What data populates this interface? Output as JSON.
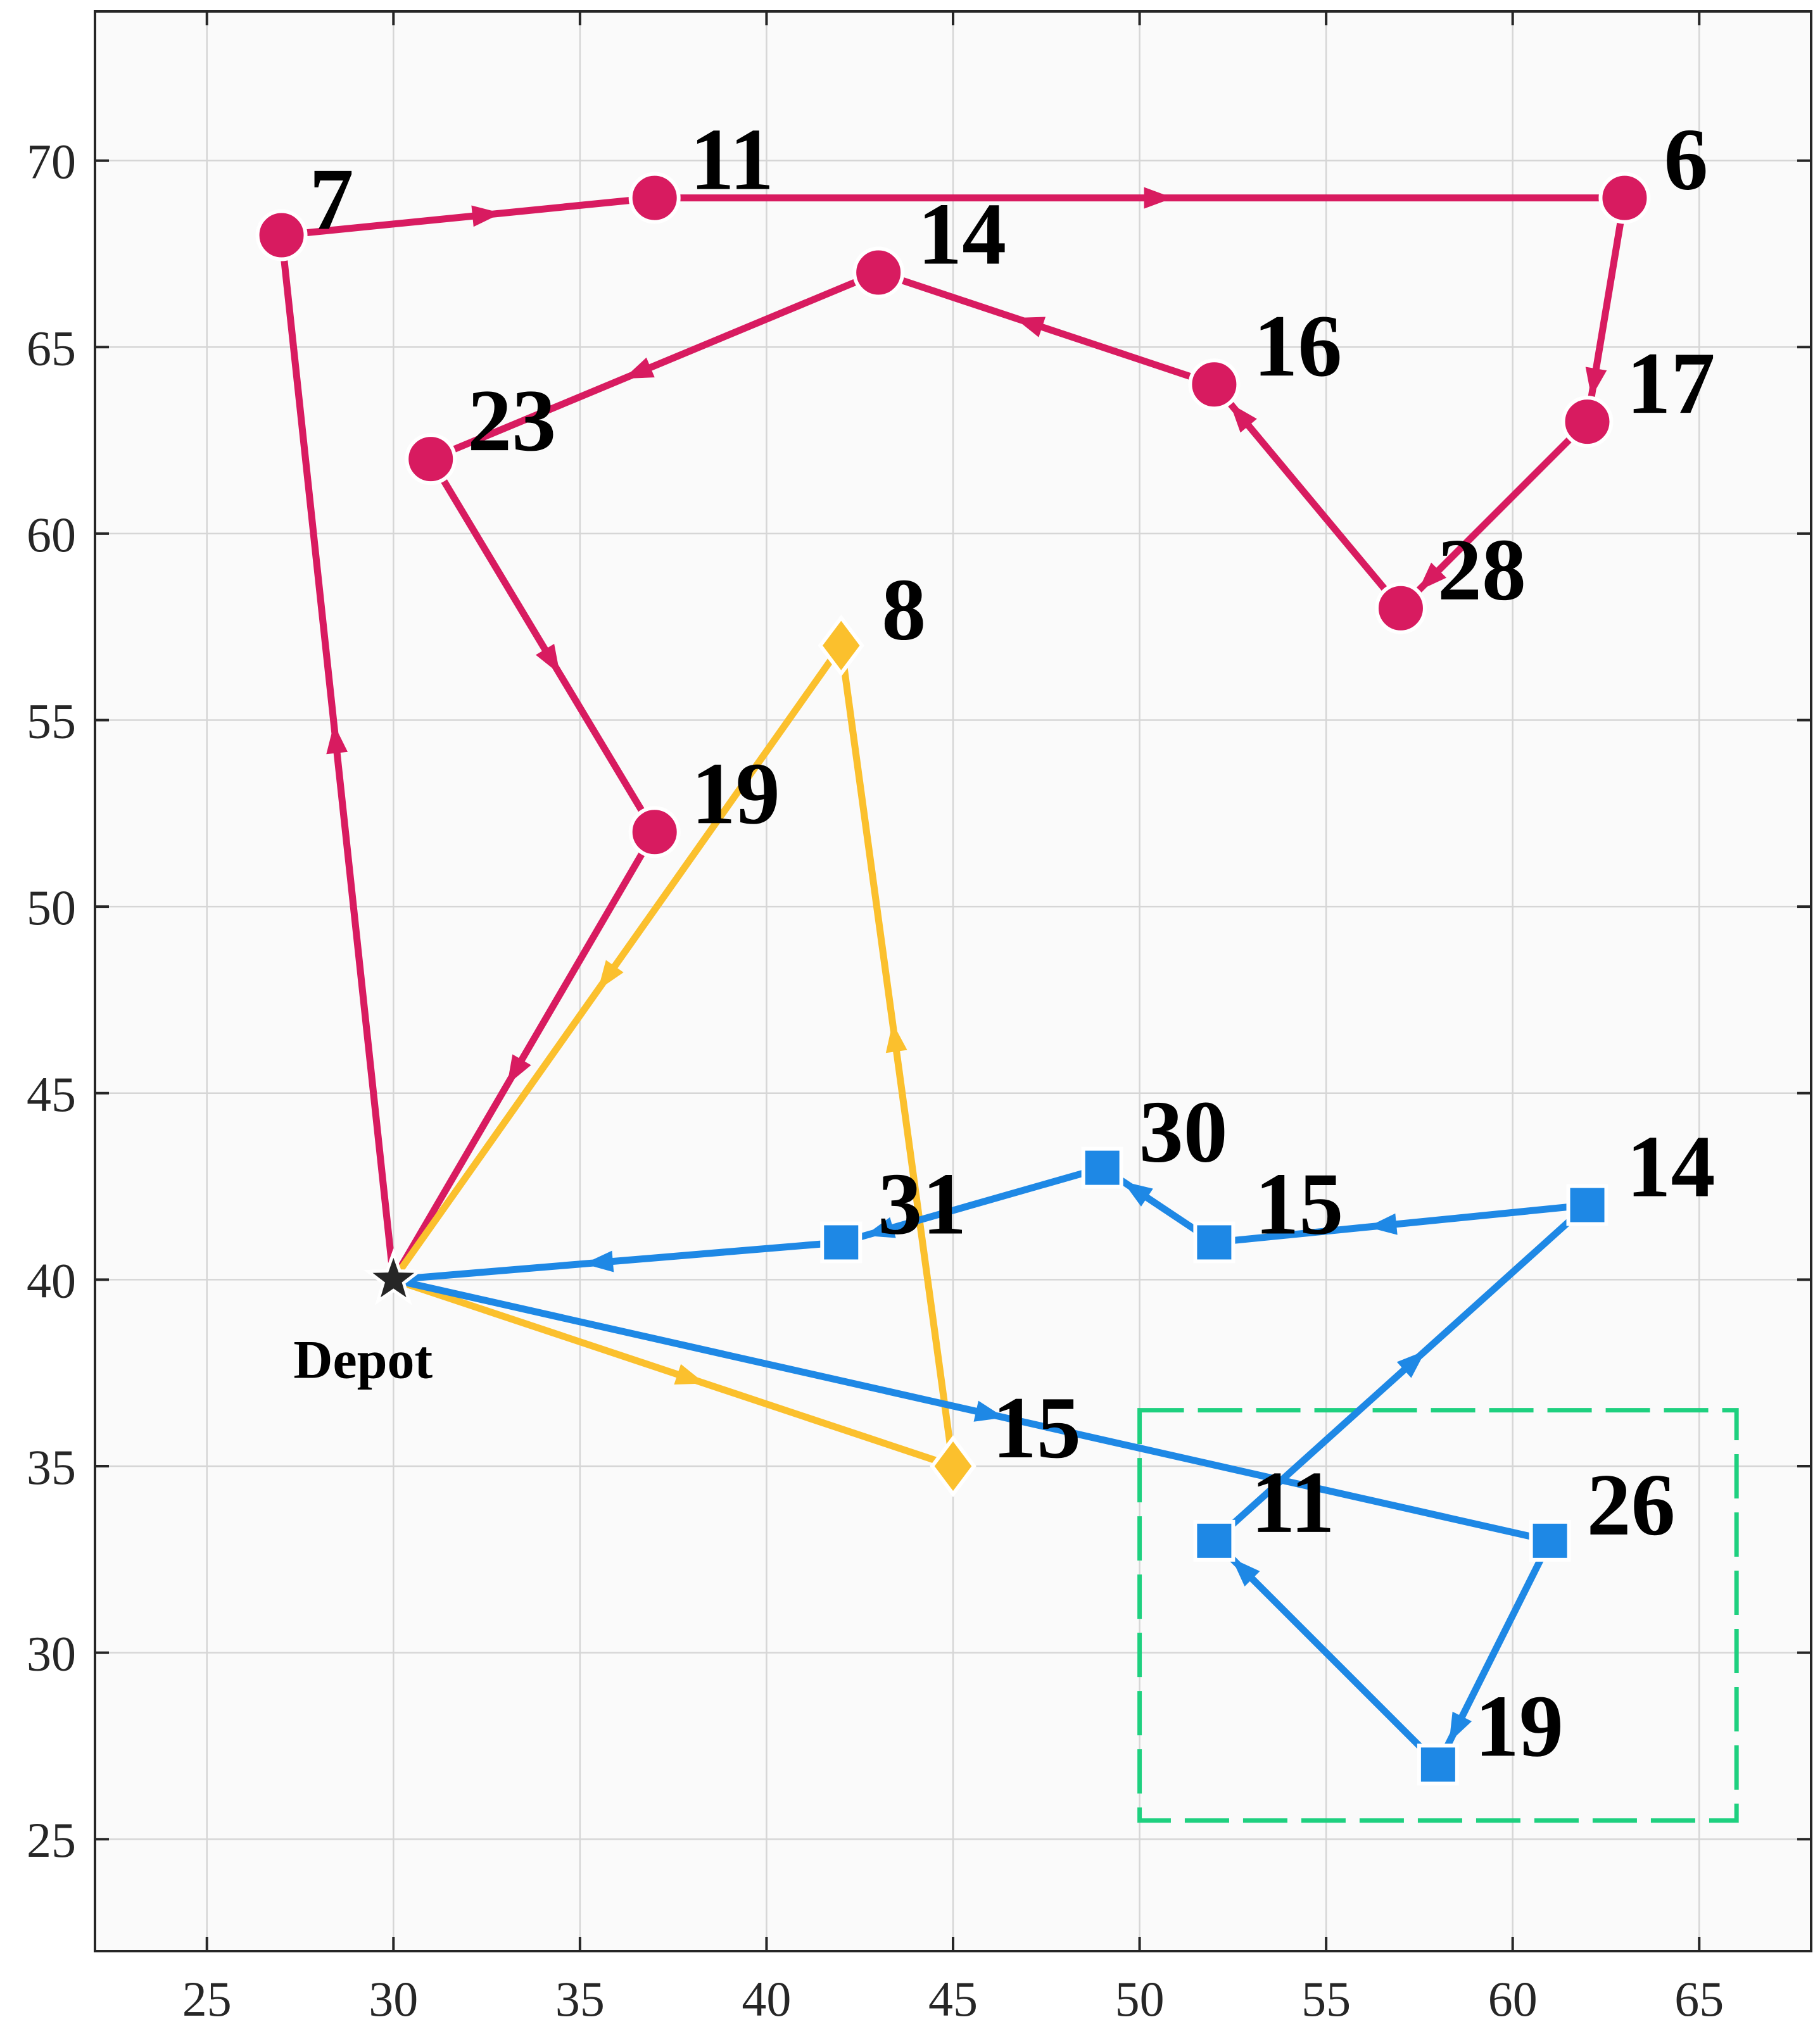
{
  "chart_data": {
    "type": "scatter",
    "title": "",
    "xlabel": "",
    "ylabel": "",
    "xlim": [
      22,
      68
    ],
    "ylim": [
      22,
      74
    ],
    "xticks": [
      25,
      30,
      35,
      40,
      45,
      50,
      55,
      60,
      65
    ],
    "yticks": [
      25,
      30,
      35,
      40,
      45,
      50,
      55,
      60,
      65,
      70
    ],
    "grid": true,
    "depot": {
      "label": "Depot",
      "x": 30,
      "y": 40
    },
    "series": [
      {
        "color": "#d81b60",
        "marker": "circle",
        "route": [
          {
            "label": "",
            "x": 30,
            "y": 40
          },
          {
            "label": "7",
            "x": 27,
            "y": 68
          },
          {
            "label": "11",
            "x": 37,
            "y": 69
          },
          {
            "label": "6",
            "x": 63,
            "y": 69
          },
          {
            "label": "17",
            "x": 62,
            "y": 63
          },
          {
            "label": "28",
            "x": 57,
            "y": 58
          },
          {
            "label": "16",
            "x": 52,
            "y": 64
          },
          {
            "label": "14",
            "x": 43,
            "y": 67
          },
          {
            "label": "23",
            "x": 31,
            "y": 62
          },
          {
            "label": "19",
            "x": 37,
            "y": 52
          },
          {
            "label": "",
            "x": 30,
            "y": 40
          }
        ]
      },
      {
        "color": "#fbc02d",
        "marker": "diamond",
        "route": [
          {
            "label": "",
            "x": 30,
            "y": 40
          },
          {
            "label": "15",
            "x": 45,
            "y": 35
          },
          {
            "label": "8",
            "x": 42,
            "y": 57
          },
          {
            "label": "",
            "x": 30,
            "y": 40
          }
        ]
      },
      {
        "color": "#1e88e5",
        "marker": "square",
        "route": [
          {
            "label": "",
            "x": 30,
            "y": 40
          },
          {
            "label": "26",
            "x": 61,
            "y": 33
          },
          {
            "label": "19",
            "x": 58,
            "y": 27
          },
          {
            "label": "11",
            "x": 52,
            "y": 33
          },
          {
            "label": "14",
            "x": 62,
            "y": 42
          },
          {
            "label": "15",
            "x": 52,
            "y": 41
          },
          {
            "label": "30",
            "x": 49,
            "y": 43
          },
          {
            "label": "31",
            "x": 42,
            "y": 41
          },
          {
            "label": "",
            "x": 30,
            "y": 40
          }
        ]
      }
    ],
    "highlight_box": {
      "x0": 50,
      "x1": 66,
      "y0": 25.5,
      "y1": 36.5,
      "color": "#1ed07f",
      "style": "dashed"
    }
  }
}
